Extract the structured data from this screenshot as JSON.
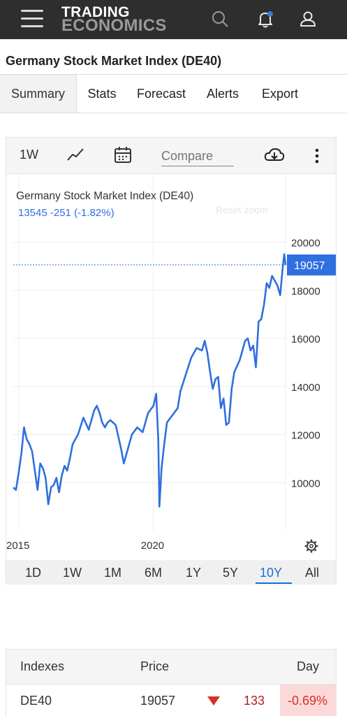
{
  "header": {
    "logo_line1": "TRADING",
    "logo_line2": "ECONOMICS",
    "icons": [
      "menu-icon",
      "search-icon",
      "notification-bell-icon",
      "user-icon"
    ],
    "notification_dot_color": "#3a7bd5"
  },
  "page": {
    "title": "Germany Stock Market Index (DE40)"
  },
  "tabs": [
    {
      "label": "Summary",
      "active": true
    },
    {
      "label": "Stats"
    },
    {
      "label": "Forecast"
    },
    {
      "label": "Alerts"
    },
    {
      "label": "Export"
    }
  ],
  "toolbar": {
    "interval": "1W",
    "chart_type_icon": "line-chart-icon",
    "calendar_icon": "calendar-icon",
    "compare_placeholder": "Compare",
    "download_icon": "download-cloud-icon",
    "more_icon": "more-vertical-icon"
  },
  "chart": {
    "title": "Germany Stock Market Index (DE40)",
    "info_line": "13545 -251 (-1.82%)",
    "reset_zoom": "Reset zoom",
    "current_price": "19057",
    "settings_icon": "gear-icon",
    "line_color": "#2f6fe0",
    "ranges": [
      "1D",
      "1W",
      "1M",
      "6M",
      "1Y",
      "5Y",
      "10Y",
      "All"
    ],
    "active_range": "10Y"
  },
  "chart_data": {
    "type": "line",
    "title": "Germany Stock Market Index (DE40)",
    "xlabel": "",
    "ylabel": "",
    "x_ticks": [
      "2015",
      "2020"
    ],
    "y_ticks": [
      10000,
      12000,
      14000,
      16000,
      18000,
      20000
    ],
    "ylim": [
      8000,
      20800
    ],
    "xlim": [
      2014.8,
      2024.9
    ],
    "grid": true,
    "current_value": 19057,
    "series": [
      {
        "x": [
          2014.8,
          2014.9,
          2015.0,
          2015.1,
          2015.2,
          2015.3,
          2015.4,
          2015.5,
          2015.6,
          2015.7,
          2015.8,
          2015.9,
          2016.0,
          2016.1,
          2016.2,
          2016.3,
          2016.4,
          2016.5,
          2016.6,
          2016.7,
          2016.8,
          2016.9,
          2017.0,
          2017.2,
          2017.4,
          2017.6,
          2017.8,
          2017.9,
          2018.0,
          2018.1,
          2018.2,
          2018.3,
          2018.4,
          2018.6,
          2018.8,
          2018.9,
          2019.0,
          2019.2,
          2019.4,
          2019.6,
          2019.8,
          2020.0,
          2020.1,
          2020.18,
          2020.22,
          2020.3,
          2020.4,
          2020.5,
          2020.7,
          2020.9,
          2021.0,
          2021.2,
          2021.4,
          2021.6,
          2021.8,
          2021.9,
          2022.0,
          2022.1,
          2022.2,
          2022.3,
          2022.4,
          2022.5,
          2022.6,
          2022.7,
          2022.8,
          2022.9,
          2023.0,
          2023.2,
          2023.4,
          2023.5,
          2023.6,
          2023.7,
          2023.8,
          2023.9,
          2024.0,
          2024.1,
          2024.2,
          2024.3,
          2024.4,
          2024.5,
          2024.6,
          2024.7,
          2024.8,
          2024.85,
          2024.9
        ],
        "values": [
          9800,
          9700,
          10400,
          11200,
          12300,
          11800,
          11600,
          11300,
          10500,
          9700,
          10800,
          10600,
          10200,
          9100,
          9800,
          9900,
          10200,
          9600,
          10300,
          10700,
          10500,
          11000,
          11600,
          12000,
          12700,
          12200,
          13000,
          13200,
          12900,
          12500,
          12300,
          12500,
          12600,
          12400,
          11400,
          10800,
          11200,
          12000,
          12300,
          12100,
          12900,
          13200,
          13700,
          11800,
          9000,
          10600,
          11600,
          12500,
          12800,
          13100,
          13800,
          14500,
          15200,
          15600,
          15500,
          15900,
          15400,
          14600,
          13900,
          14300,
          14400,
          13100,
          13500,
          12400,
          12500,
          13900,
          14600,
          15100,
          15900,
          16000,
          15500,
          15700,
          14800,
          16700,
          16800,
          17400,
          18300,
          18100,
          18600,
          18400,
          18200,
          17800,
          19000,
          19500,
          19057
        ]
      }
    ]
  },
  "table": {
    "headers": {
      "name": "Indexes",
      "price": "Price",
      "day": "Day"
    },
    "rows": [
      {
        "name": "DE40",
        "price": "19057",
        "change": "133",
        "day": "-0.69%",
        "direction": "down"
      }
    ],
    "down_color": "#d93025",
    "down_bg": "#fbd9d9"
  }
}
